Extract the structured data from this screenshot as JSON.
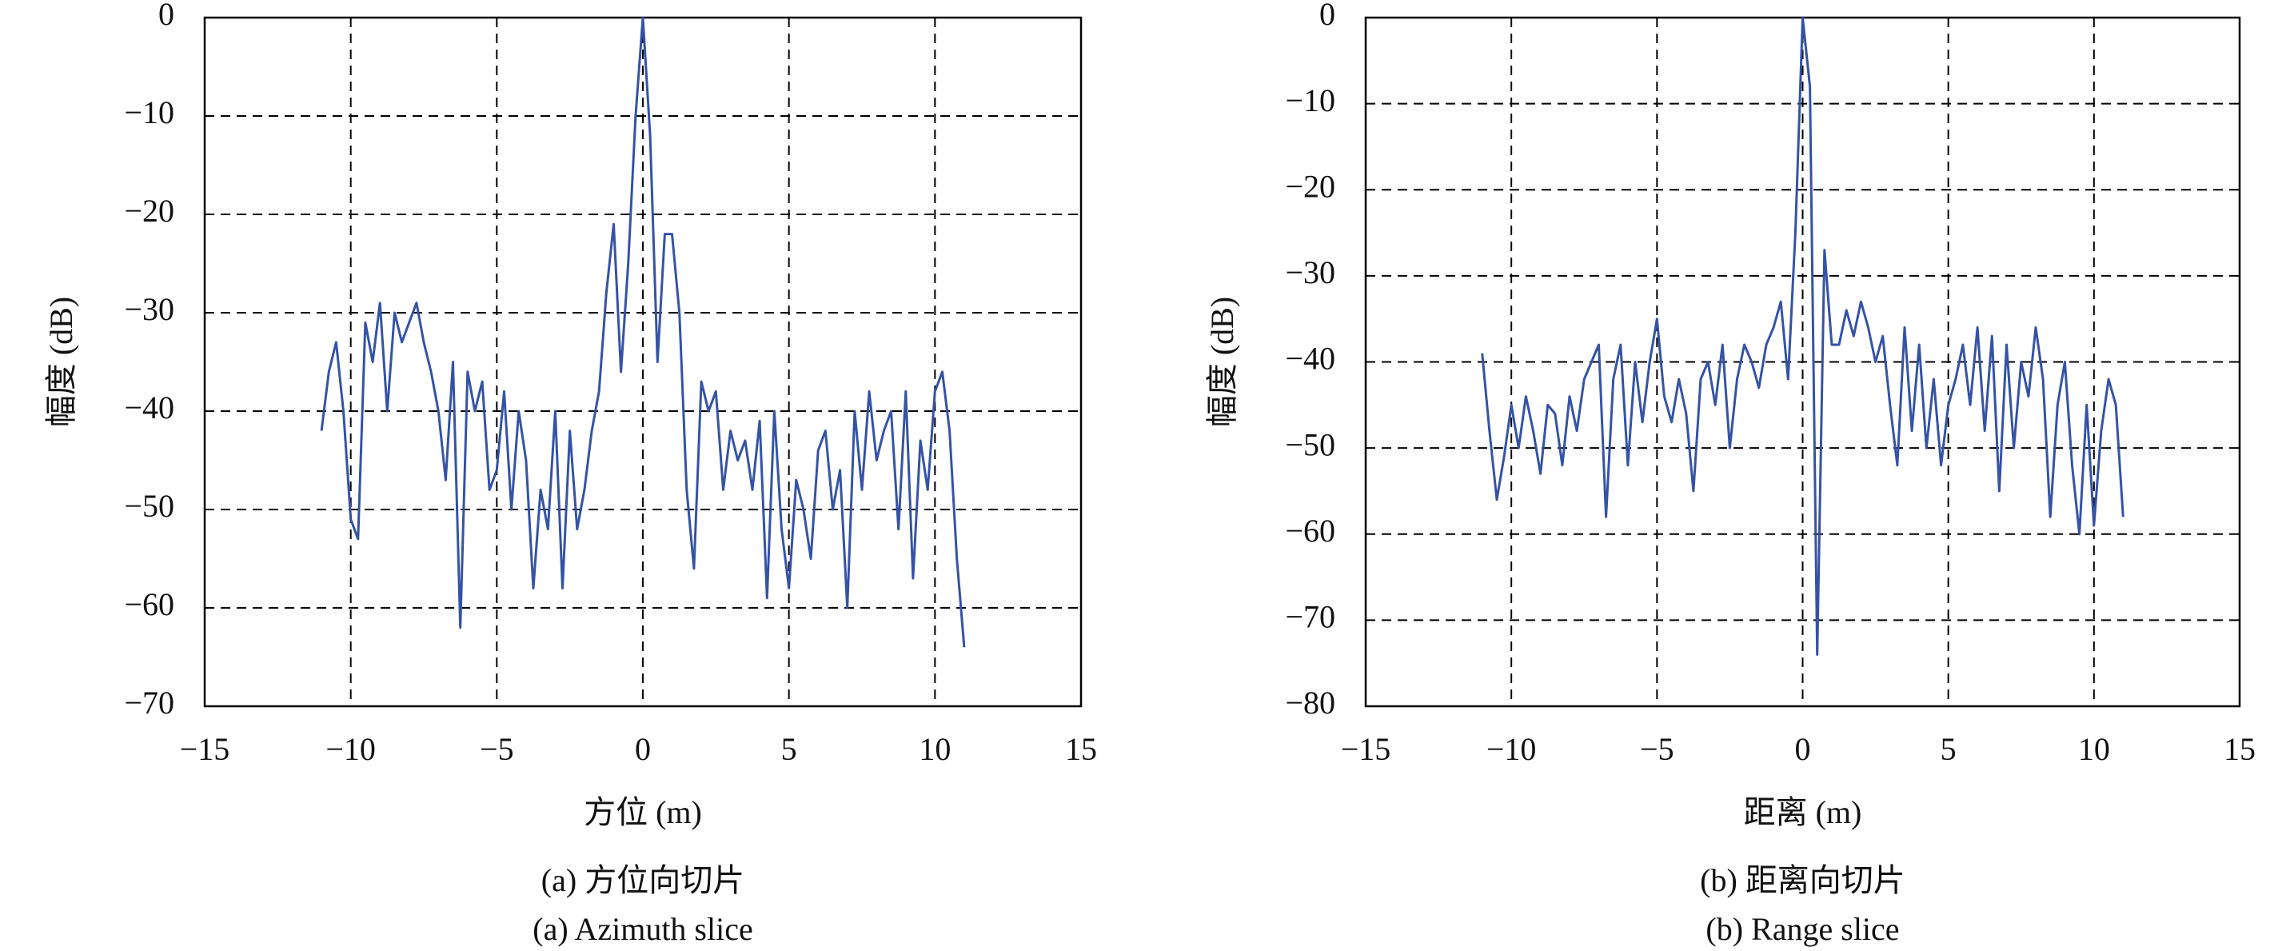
{
  "chart_data": [
    {
      "type": "line",
      "xlabel": "方位 (m)",
      "ylabel": "幅度 (dB)",
      "caption_zh": "(a) 方位向切片",
      "caption_en": "(a) Azimuth slice",
      "color": "#3553a5",
      "grid": true,
      "xlim": [
        -15,
        15
      ],
      "ylim": [
        -70,
        0
      ],
      "xticks": [
        {
          "value": -15,
          "label": "−15"
        },
        {
          "value": -10,
          "label": "−10"
        },
        {
          "value": -5,
          "label": "−5"
        },
        0,
        5,
        10,
        15
      ],
      "yticks": [
        0,
        {
          "value": -10,
          "label": "−10"
        },
        {
          "value": -20,
          "label": "−20"
        },
        {
          "value": -30,
          "label": "−30"
        },
        {
          "value": -40,
          "label": "−40"
        },
        {
          "value": -50,
          "label": "−50"
        },
        {
          "value": -60,
          "label": "−60"
        },
        {
          "value": -70,
          "label": "−70"
        }
      ],
      "x": [
        -11,
        -10.75,
        -10.5,
        -10.25,
        -10,
        -9.75,
        -9.5,
        -9.25,
        -9,
        -8.75,
        -8.5,
        -8.25,
        -8,
        -7.75,
        -7.5,
        -7.25,
        -7,
        -6.75,
        -6.5,
        -6.25,
        -6,
        -5.75,
        -5.5,
        -5.25,
        -5,
        -4.75,
        -4.5,
        -4.25,
        -4,
        -3.75,
        -3.5,
        -3.25,
        -3,
        -2.75,
        -2.5,
        -2.25,
        -2,
        -1.75,
        -1.5,
        -1.25,
        -1,
        -0.75,
        -0.5,
        -0.25,
        0,
        0.25,
        0.5,
        0.75,
        1,
        1.25,
        1.5,
        1.75,
        2,
        2.25,
        2.5,
        2.75,
        3,
        3.25,
        3.5,
        3.75,
        4,
        4.25,
        4.5,
        4.75,
        5,
        5.25,
        5.5,
        5.75,
        6,
        6.25,
        6.5,
        6.75,
        7,
        7.25,
        7.5,
        7.75,
        8,
        8.25,
        8.5,
        8.75,
        9,
        9.25,
        9.5,
        9.75,
        10,
        10.25,
        10.5,
        10.75,
        11
      ],
      "values": [
        -42,
        -36,
        -33,
        -40,
        -51,
        -53,
        -31,
        -35,
        -29,
        -40,
        -30,
        -33,
        -31,
        -29,
        -33,
        -36,
        -40,
        -47,
        -35,
        -62,
        -36,
        -40,
        -37,
        -48,
        -46,
        -38,
        -50,
        -40,
        -45,
        -58,
        -48,
        -52,
        -40,
        -58,
        -42,
        -52,
        -48,
        -42,
        -38,
        -28,
        -21,
        -36,
        -25,
        -10,
        0,
        -12,
        -35,
        -22,
        -22,
        -30,
        -48,
        -56,
        -37,
        -40,
        -38,
        -48,
        -42,
        -45,
        -43,
        -48,
        -41,
        -59,
        -40,
        -52,
        -58,
        -47,
        -50,
        -55,
        -44,
        -42,
        -50,
        -46,
        -60,
        -40,
        -48,
        -38,
        -45,
        -42,
        -40,
        -52,
        -38,
        -57,
        -43,
        -48,
        -38,
        -36,
        -42,
        -55,
        -64
      ]
    },
    {
      "type": "line",
      "xlabel": "距离 (m)",
      "ylabel": "幅度 (dB)",
      "caption_zh": "(b) 距离向切片",
      "caption_en": "(b) Range slice",
      "color": "#3553a5",
      "grid": true,
      "xlim": [
        -15,
        15
      ],
      "ylim": [
        -80,
        0
      ],
      "xticks": [
        {
          "value": -15,
          "label": "−15"
        },
        {
          "value": -10,
          "label": "−10"
        },
        {
          "value": -5,
          "label": "−5"
        },
        0,
        5,
        10,
        15
      ],
      "yticks": [
        0,
        {
          "value": -10,
          "label": "−10"
        },
        {
          "value": -20,
          "label": "−20"
        },
        {
          "value": -30,
          "label": "−30"
        },
        {
          "value": -40,
          "label": "−40"
        },
        {
          "value": -50,
          "label": "−50"
        },
        {
          "value": -60,
          "label": "−60"
        },
        {
          "value": -70,
          "label": "−70"
        },
        {
          "value": -80,
          "label": "−80"
        }
      ],
      "x": [
        -11,
        -10.75,
        -10.5,
        -10.25,
        -10,
        -9.75,
        -9.5,
        -9.25,
        -9,
        -8.75,
        -8.5,
        -8.25,
        -8,
        -7.75,
        -7.5,
        -7.25,
        -7,
        -6.75,
        -6.5,
        -6.25,
        -6,
        -5.75,
        -5.5,
        -5.25,
        -5,
        -4.75,
        -4.5,
        -4.25,
        -4,
        -3.75,
        -3.5,
        -3.25,
        -3,
        -2.75,
        -2.5,
        -2.25,
        -2,
        -1.75,
        -1.5,
        -1.25,
        -1,
        -0.75,
        -0.5,
        -0.25,
        0,
        0.25,
        0.5,
        0.75,
        1,
        1.25,
        1.5,
        1.75,
        2,
        2.25,
        2.5,
        2.75,
        3,
        3.25,
        3.5,
        3.75,
        4,
        4.25,
        4.5,
        4.75,
        5,
        5.25,
        5.5,
        5.75,
        6,
        6.25,
        6.5,
        6.75,
        7,
        7.25,
        7.5,
        7.75,
        8,
        8.25,
        8.5,
        8.75,
        9,
        9.25,
        9.5,
        9.75,
        10,
        10.25,
        10.5,
        10.75,
        11
      ],
      "values": [
        -39,
        -48,
        -56,
        -51,
        -45,
        -50,
        -44,
        -48,
        -53,
        -45,
        -46,
        -52,
        -44,
        -48,
        -42,
        -40,
        -38,
        -58,
        -42,
        -38,
        -52,
        -40,
        -47,
        -40,
        -35,
        -44,
        -47,
        -42,
        -46,
        -55,
        -42,
        -40,
        -45,
        -38,
        -50,
        -42,
        -38,
        -40,
        -43,
        -38,
        -36,
        -33,
        -42,
        -25,
        0,
        -8,
        -74,
        -27,
        -38,
        -38,
        -34,
        -37,
        -33,
        -36,
        -40,
        -37,
        -45,
        -52,
        -36,
        -48,
        -38,
        -50,
        -42,
        -52,
        -45,
        -42,
        -38,
        -45,
        -36,
        -48,
        -37,
        -55,
        -38,
        -50,
        -40,
        -44,
        -36,
        -42,
        -58,
        -45,
        -40,
        -52,
        -60,
        -45,
        -59,
        -48,
        -42,
        -45,
        -58
      ]
    }
  ]
}
